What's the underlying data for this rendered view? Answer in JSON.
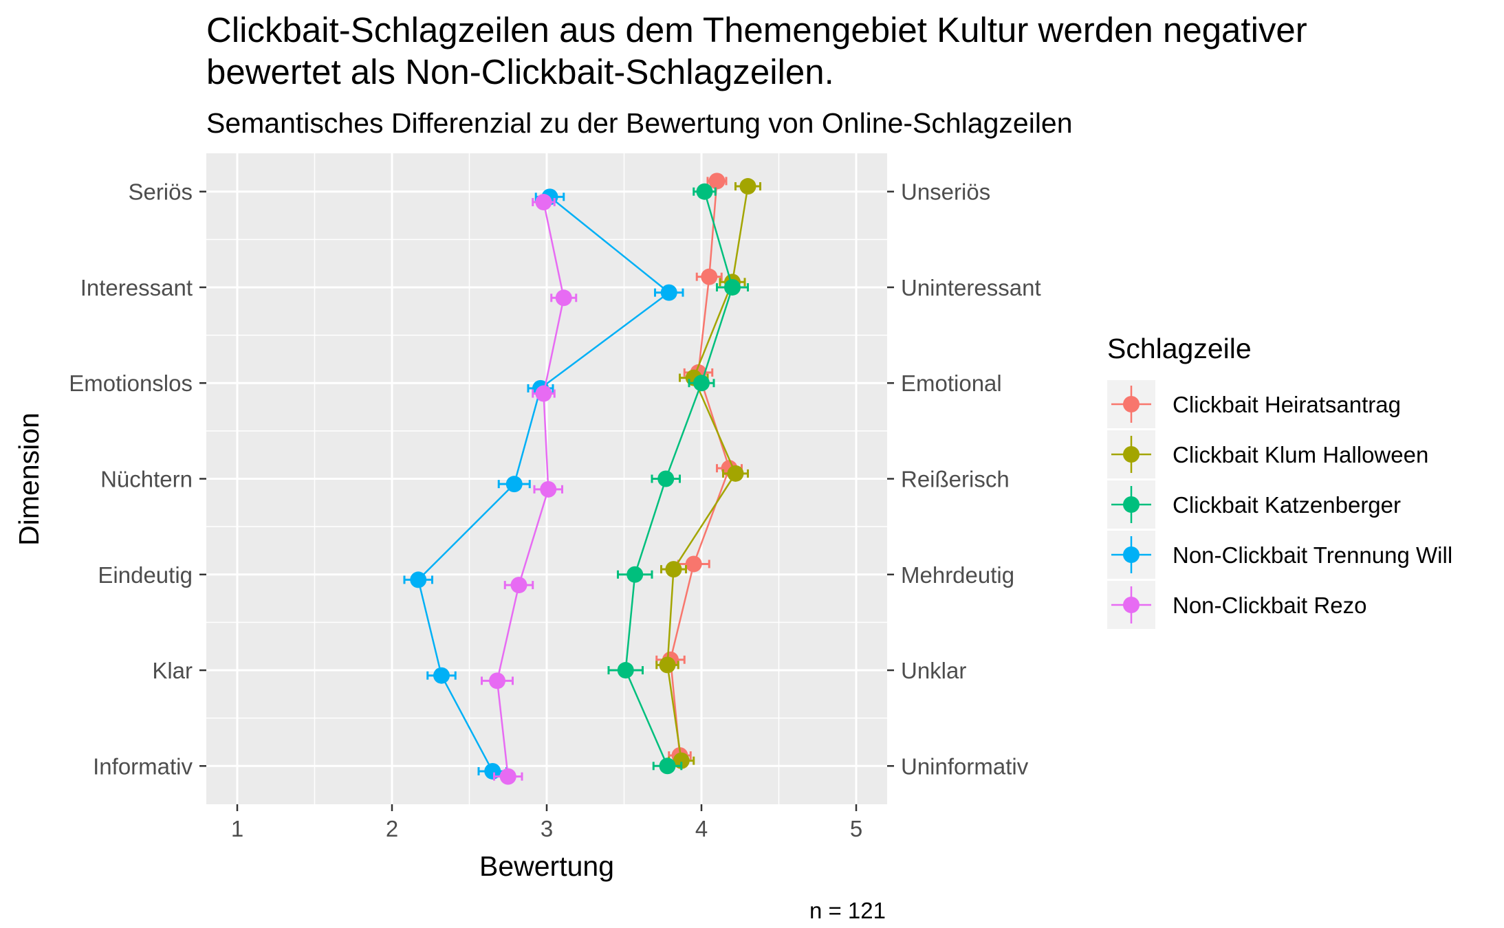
{
  "chart_data": {
    "type": "line",
    "title_lines": [
      "Clickbait-Schlagzeilen aus dem Themengebiet Kultur werden negativer",
      "bewertet als Non-Clickbait-Schlagzeilen."
    ],
    "subtitle": "Semantisches Differenzial zu der Bewertung von Online-Schlagzeilen",
    "xlabel": "Bewertung",
    "ylabel": "Dimension",
    "caption": "n = 121",
    "xlim": [
      0.8,
      5.2
    ],
    "x_ticks": [
      1,
      2,
      3,
      4,
      5
    ],
    "x_tick_labels": [
      "1",
      "2",
      "3",
      "4",
      "5"
    ],
    "categories_left": [
      "Seriös",
      "Interessant",
      "Emotionslos",
      "Nüchtern",
      "Eindeutig",
      "Klar",
      "Informativ"
    ],
    "categories_right": [
      "Unseriös",
      "Uninteressant",
      "Emotional",
      "Reißerisch",
      "Mehrdeutig",
      "Unklar",
      "Uninformativ"
    ],
    "grid": true,
    "legend": {
      "title": "Schlagzeile",
      "position": "right"
    },
    "series": [
      {
        "name": "Clickbait Heiratsantrag",
        "color": "#F8766D",
        "values": [
          4.1,
          4.05,
          3.98,
          4.18,
          3.95,
          3.8,
          3.86
        ],
        "errors": [
          0.06,
          0.08,
          0.09,
          0.08,
          0.1,
          0.09,
          0.07
        ]
      },
      {
        "name": "Clickbait Klum Halloween",
        "color": "#A3A500",
        "values": [
          4.3,
          4.2,
          3.95,
          4.22,
          3.82,
          3.78,
          3.87
        ],
        "errors": [
          0.08,
          0.08,
          0.09,
          0.08,
          0.08,
          0.07,
          0.08
        ]
      },
      {
        "name": "Clickbait Katzenberger",
        "color": "#00BF7D",
        "values": [
          4.02,
          4.2,
          4.0,
          3.77,
          3.57,
          3.51,
          3.78
        ],
        "errors": [
          0.07,
          0.1,
          0.08,
          0.09,
          0.11,
          0.11,
          0.09
        ]
      },
      {
        "name": "Non-Clickbait Trennung Will",
        "color": "#00B0F6",
        "values": [
          3.02,
          3.79,
          2.96,
          2.79,
          2.17,
          2.32,
          2.65
        ],
        "errors": [
          0.09,
          0.09,
          0.08,
          0.1,
          0.09,
          0.09,
          0.09
        ]
      },
      {
        "name": "Non-Clickbait Rezo",
        "color": "#E76BF3",
        "values": [
          2.98,
          3.11,
          2.98,
          3.01,
          2.82,
          2.68,
          2.75
        ],
        "errors": [
          0.07,
          0.08,
          0.07,
          0.09,
          0.09,
          0.1,
          0.09
        ]
      }
    ]
  }
}
